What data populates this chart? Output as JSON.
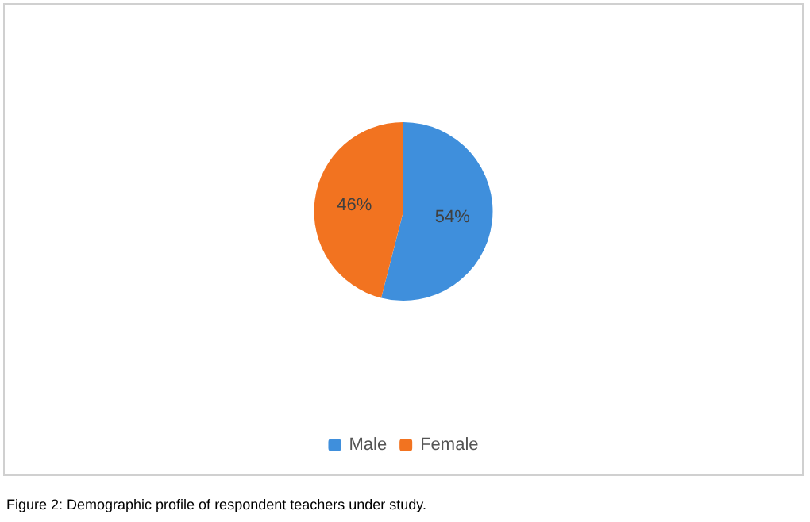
{
  "chart_data": {
    "type": "pie",
    "categories": [
      "Male",
      "Female"
    ],
    "values": [
      54,
      46
    ],
    "colors": [
      "#3f8fdc",
      "#f27320"
    ],
    "value_labels": [
      "54%",
      "46%"
    ],
    "legend": "bottom",
    "annotations": [
      "Figure 2: Demographic profile of respondent teachers under study."
    ]
  }
}
